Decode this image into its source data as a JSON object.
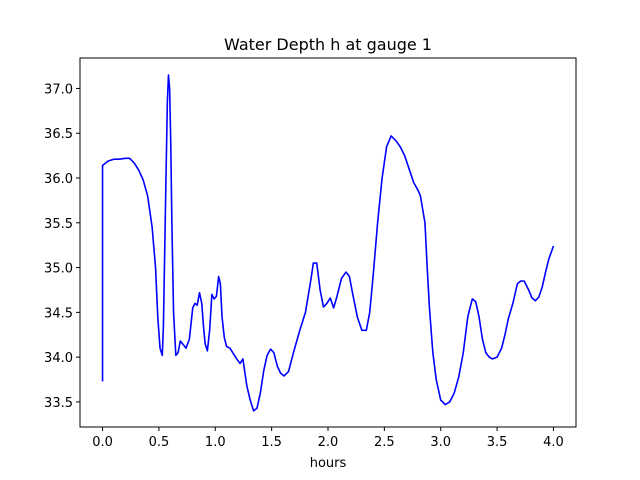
{
  "chart_data": {
    "type": "line",
    "title": "Water Depth h at gauge 1",
    "xlabel": "hours",
    "ylabel": "",
    "xlim": [
      -0.2,
      4.2
    ],
    "ylim": [
      33.22,
      37.34
    ],
    "xticks": [
      0.0,
      0.5,
      1.0,
      1.5,
      2.0,
      2.5,
      3.0,
      3.5,
      4.0
    ],
    "xtick_labels": [
      "0.0",
      "0.5",
      "1.0",
      "1.5",
      "2.0",
      "2.5",
      "3.0",
      "3.5",
      "4.0"
    ],
    "yticks": [
      33.5,
      34.0,
      34.5,
      35.0,
      35.5,
      36.0,
      36.5,
      37.0
    ],
    "ytick_labels": [
      "33.5",
      "34.0",
      "34.5",
      "35.0",
      "35.5",
      "36.0",
      "36.5",
      "37.0"
    ],
    "grid": false,
    "series": [
      {
        "color": "#0000ff",
        "x": [
          0.0,
          0.0,
          0.02,
          0.05,
          0.1,
          0.15,
          0.2,
          0.24,
          0.28,
          0.32,
          0.36,
          0.4,
          0.44,
          0.47,
          0.49,
          0.51,
          0.53,
          0.54,
          0.56,
          0.575,
          0.585,
          0.595,
          0.605,
          0.615,
          0.63,
          0.65,
          0.67,
          0.69,
          0.71,
          0.74,
          0.77,
          0.8,
          0.82,
          0.84,
          0.86,
          0.88,
          0.895,
          0.91,
          0.93,
          0.95,
          0.97,
          0.99,
          1.01,
          1.03,
          1.045,
          1.06,
          1.08,
          1.1,
          1.13,
          1.16,
          1.19,
          1.22,
          1.245,
          1.26,
          1.28,
          1.31,
          1.34,
          1.37,
          1.4,
          1.43,
          1.46,
          1.49,
          1.52,
          1.55,
          1.58,
          1.61,
          1.65,
          1.7,
          1.75,
          1.8,
          1.85,
          1.87,
          1.9,
          1.93,
          1.96,
          1.99,
          2.02,
          2.05,
          2.08,
          2.12,
          2.16,
          2.19,
          2.22,
          2.26,
          2.3,
          2.34,
          2.37,
          2.4,
          2.44,
          2.48,
          2.52,
          2.56,
          2.6,
          2.64,
          2.68,
          2.72,
          2.76,
          2.8,
          2.82,
          2.84,
          2.86,
          2.88,
          2.9,
          2.93,
          2.96,
          3.0,
          3.04,
          3.08,
          3.12,
          3.16,
          3.2,
          3.24,
          3.28,
          3.31,
          3.34,
          3.37,
          3.4,
          3.43,
          3.46,
          3.5,
          3.54,
          3.57,
          3.6,
          3.64,
          3.68,
          3.71,
          3.74,
          3.78,
          3.81,
          3.84,
          3.87,
          3.9,
          3.93,
          3.96,
          4.0
        ],
        "y": [
          33.73,
          36.14,
          36.16,
          36.19,
          36.21,
          36.21,
          36.22,
          36.22,
          36.17,
          36.09,
          35.98,
          35.8,
          35.45,
          35.0,
          34.45,
          34.1,
          34.02,
          34.35,
          35.8,
          36.85,
          37.15,
          37.0,
          36.4,
          35.5,
          34.5,
          34.02,
          34.05,
          34.18,
          34.15,
          34.1,
          34.2,
          34.55,
          34.6,
          34.58,
          34.72,
          34.6,
          34.35,
          34.15,
          34.07,
          34.3,
          34.7,
          34.65,
          34.68,
          34.9,
          34.82,
          34.45,
          34.22,
          34.12,
          34.1,
          34.04,
          33.98,
          33.93,
          33.98,
          33.85,
          33.68,
          33.52,
          33.4,
          33.43,
          33.6,
          33.85,
          34.02,
          34.09,
          34.05,
          33.9,
          33.82,
          33.79,
          33.84,
          34.08,
          34.3,
          34.5,
          34.88,
          35.05,
          35.05,
          34.75,
          34.56,
          34.6,
          34.66,
          34.55,
          34.68,
          34.88,
          34.95,
          34.9,
          34.7,
          34.45,
          34.3,
          34.3,
          34.5,
          34.9,
          35.5,
          36.0,
          36.35,
          36.47,
          36.42,
          36.35,
          36.25,
          36.1,
          35.95,
          35.86,
          35.8,
          35.65,
          35.5,
          35.0,
          34.55,
          34.05,
          33.75,
          33.52,
          33.47,
          33.5,
          33.6,
          33.78,
          34.05,
          34.45,
          34.65,
          34.62,
          34.45,
          34.2,
          34.05,
          34.0,
          33.98,
          34.0,
          34.1,
          34.25,
          34.43,
          34.6,
          34.82,
          34.85,
          34.85,
          34.75,
          34.66,
          34.63,
          34.67,
          34.78,
          34.95,
          35.1,
          35.24
        ]
      }
    ]
  }
}
